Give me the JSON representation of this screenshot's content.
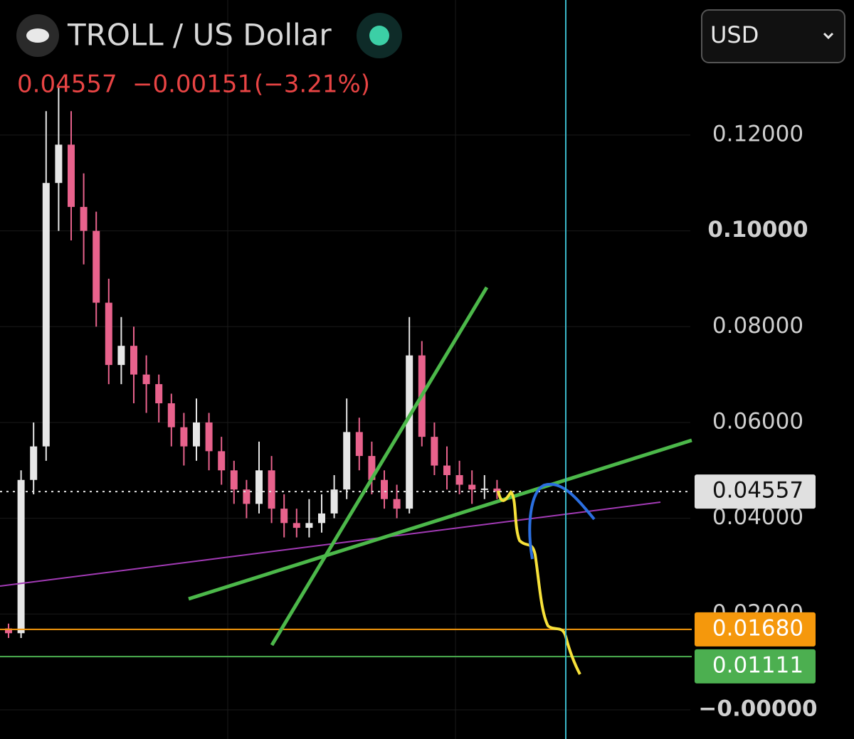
{
  "header": {
    "title": "TROLL / US Dollar",
    "price": "0.04557",
    "change": "−0.00151",
    "change_pct": "(−3.21%)",
    "currency": "USD"
  },
  "chart_data": {
    "type": "candlestick",
    "open": [
      0.017,
      0.016,
      0.048,
      0.055,
      0.11,
      0.118,
      0.105,
      0.1,
      0.085,
      0.072,
      0.076,
      0.07,
      0.068,
      0.064,
      0.059,
      0.055,
      0.06,
      0.054,
      0.05,
      0.046,
      0.043,
      0.05,
      0.042,
      0.039,
      0.038,
      0.039,
      0.041,
      0.046,
      0.058,
      0.053,
      0.048,
      0.044,
      0.042,
      0.074,
      0.057,
      0.051,
      0.049,
      0.047,
      0.046,
      0.0462
    ],
    "high": [
      0.018,
      0.05,
      0.06,
      0.125,
      0.13,
      0.125,
      0.112,
      0.104,
      0.09,
      0.082,
      0.08,
      0.074,
      0.07,
      0.066,
      0.062,
      0.065,
      0.062,
      0.057,
      0.052,
      0.048,
      0.056,
      0.053,
      0.045,
      0.042,
      0.044,
      0.045,
      0.049,
      0.065,
      0.061,
      0.056,
      0.05,
      0.047,
      0.082,
      0.077,
      0.06,
      0.055,
      0.052,
      0.05,
      0.049,
      0.048
    ],
    "low": [
      0.015,
      0.015,
      0.045,
      0.052,
      0.1,
      0.098,
      0.093,
      0.08,
      0.068,
      0.068,
      0.064,
      0.062,
      0.06,
      0.055,
      0.051,
      0.052,
      0.05,
      0.047,
      0.043,
      0.04,
      0.041,
      0.039,
      0.036,
      0.036,
      0.036,
      0.037,
      0.04,
      0.044,
      0.05,
      0.045,
      0.042,
      0.04,
      0.041,
      0.055,
      0.049,
      0.046,
      0.045,
      0.043,
      0.044,
      0.044
    ],
    "close": [
      0.016,
      0.048,
      0.055,
      0.11,
      0.118,
      0.105,
      0.1,
      0.085,
      0.072,
      0.076,
      0.07,
      0.068,
      0.064,
      0.059,
      0.055,
      0.06,
      0.054,
      0.05,
      0.046,
      0.043,
      0.05,
      0.042,
      0.039,
      0.038,
      0.039,
      0.041,
      0.046,
      0.058,
      0.053,
      0.048,
      0.044,
      0.042,
      0.074,
      0.057,
      0.051,
      0.049,
      0.047,
      0.046,
      0.0462,
      0.04557
    ],
    "up_color": "#e6e6e6",
    "down_color": "#e8628c",
    "ylim": [
      -0.00609,
      0.1482
    ],
    "yticks": [
      {
        "value": 0.12,
        "label": "0.12000"
      },
      {
        "value": 0.1,
        "label": "0.10000"
      },
      {
        "value": 0.08,
        "label": "0.08000"
      },
      {
        "value": 0.06,
        "label": "0.06000"
      },
      {
        "value": 0.04,
        "label": "0.04000"
      },
      {
        "value": 0.02,
        "label": "0.02000"
      },
      {
        "value": 0,
        "label": "−0.00000"
      }
    ],
    "price_lines": [
      {
        "value": 0.04557,
        "label": "0.04557",
        "color": "#e0e0e0"
      },
      {
        "value": 0.0168,
        "label": "0.01680",
        "color": "#f5980c"
      },
      {
        "value": 0.01111,
        "label": "0.01111",
        "color": "#4caf50"
      }
    ]
  }
}
